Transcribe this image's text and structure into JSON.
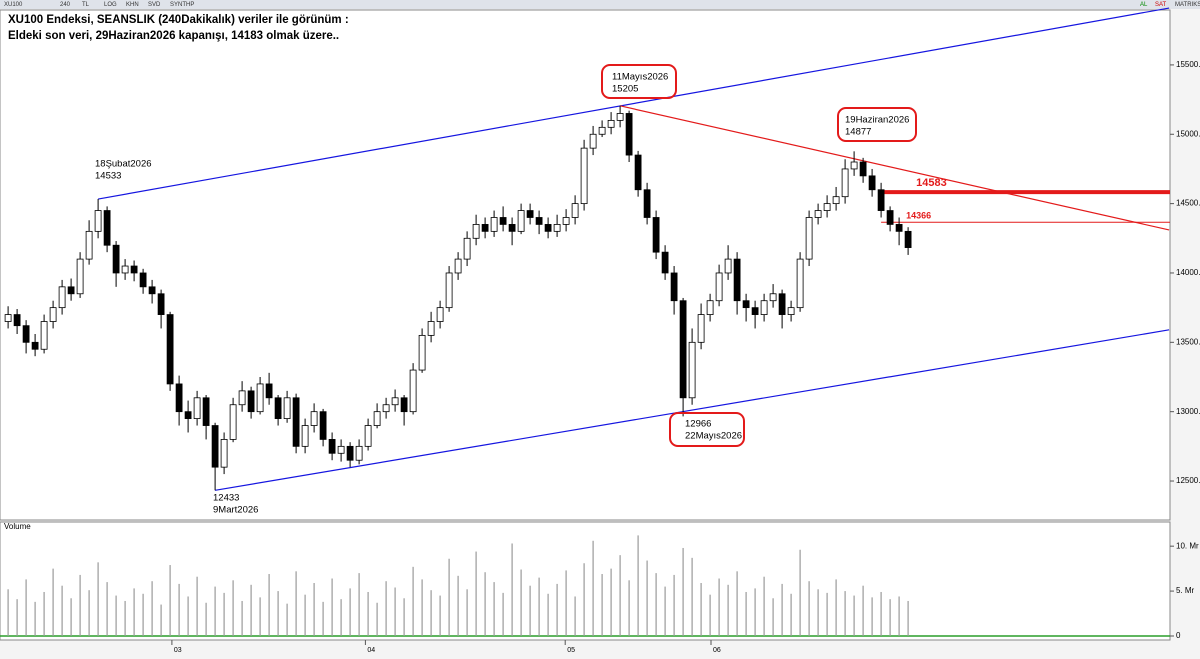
{
  "chart_data": {
    "type": "candlestick",
    "title_lines": [
      "XU100 Endeksi, SEANSLIK (240Dakikalık) veriler ile görünüm :",
      "Eldeki son veri, 29Haziran2026 kapanışı, 14183 olmak üzere.."
    ],
    "toolbar": [
      "XU100",
      "240",
      "TL",
      "LOG",
      "KHN",
      "SVD",
      "SYNTHP"
    ],
    "toolbar_right": [
      "AL",
      "SAT",
      "MATRIKS"
    ],
    "volume_title": "Volume",
    "open": [
      13650,
      13700,
      13620,
      13500,
      13450,
      13650,
      13750,
      13900,
      13850,
      14100,
      14300,
      14450,
      14200,
      14000,
      14050,
      14000,
      13900,
      13850,
      13700,
      13200,
      13000,
      12950,
      13100,
      12900,
      12600,
      12800,
      13050,
      13150,
      13000,
      13200,
      13100,
      12950,
      13100,
      12750,
      12900,
      13000,
      12800,
      12700,
      12750,
      12650,
      12750,
      12900,
      13000,
      13050,
      13100,
      13000,
      13300,
      13550,
      13650,
      13750,
      14000,
      14100,
      14250,
      14350,
      14300,
      14400,
      14350,
      14300,
      14450,
      14400,
      14350,
      14300,
      14350,
      14400,
      14500,
      14900,
      15000,
      15050,
      15100,
      15150,
      14850,
      14600,
      14400,
      14150,
      14000,
      13800,
      13100,
      13500,
      13700,
      13800,
      14000,
      14100,
      13800,
      13750,
      13700,
      13800,
      13850,
      13700,
      13750,
      14100,
      14400,
      14450,
      14500,
      14550,
      14750,
      14800,
      14700,
      14600,
      14450,
      14350,
      14300
    ],
    "high": [
      13760,
      13740,
      13660,
      13560,
      13700,
      13800,
      13950,
      13960,
      14150,
      14380,
      14533,
      14480,
      14230,
      14100,
      14090,
      14030,
      13950,
      13880,
      13720,
      13260,
      13080,
      13150,
      13120,
      12920,
      12850,
      13100,
      13220,
      13180,
      13250,
      13280,
      13120,
      13150,
      13130,
      12950,
      13060,
      13020,
      12850,
      12800,
      12780,
      12800,
      12950,
      13060,
      13100,
      13160,
      13120,
      13350,
      13600,
      13720,
      13800,
      14050,
      14150,
      14300,
      14420,
      14400,
      14450,
      14480,
      14400,
      14500,
      14500,
      14450,
      14400,
      14420,
      14460,
      14560,
      14960,
      15060,
      15100,
      15160,
      15205,
      15170,
      14880,
      14650,
      14450,
      14200,
      14050,
      13820,
      13600,
      13780,
      13850,
      14060,
      14200,
      14150,
      13850,
      13800,
      13850,
      13920,
      13880,
      13800,
      14150,
      14450,
      14500,
      14560,
      14620,
      14820,
      14877,
      14830,
      14750,
      14650,
      14480,
      14400,
      14330
    ],
    "low": [
      13600,
      13560,
      13420,
      13400,
      13420,
      13600,
      13700,
      13800,
      13820,
      14060,
      14250,
      14150,
      13900,
      13950,
      13940,
      13850,
      13780,
      13600,
      13150,
      12900,
      12850,
      12900,
      12800,
      12433,
      12550,
      12780,
      13000,
      12950,
      12980,
      13050,
      12900,
      12920,
      12700,
      12700,
      12850,
      12750,
      12650,
      12640,
      12600,
      12620,
      12720,
      12880,
      12950,
      13000,
      12900,
      12980,
      13280,
      13500,
      13600,
      13720,
      13950,
      14050,
      14200,
      14250,
      14260,
      14300,
      14200,
      14280,
      14350,
      14280,
      14250,
      14260,
      14300,
      14350,
      14450,
      14850,
      14980,
      15000,
      15050,
      14800,
      14550,
      14350,
      14100,
      13950,
      13700,
      12966,
      13050,
      13450,
      13650,
      13760,
      13950,
      13700,
      13650,
      13600,
      13650,
      13750,
      13600,
      13650,
      13720,
      14050,
      14350,
      14400,
      14450,
      14500,
      14700,
      14650,
      14550,
      14400,
      14300,
      14200,
      14130
    ],
    "close": [
      13700,
      13620,
      13500,
      13450,
      13650,
      13750,
      13900,
      13850,
      14100,
      14300,
      14450,
      14200,
      14000,
      14050,
      14000,
      13900,
      13850,
      13700,
      13200,
      13000,
      12950,
      13100,
      12900,
      12600,
      12800,
      13050,
      13150,
      13000,
      13200,
      13100,
      12950,
      13100,
      12750,
      12900,
      13000,
      12800,
      12700,
      12750,
      12650,
      12750,
      12900,
      13000,
      13050,
      13100,
      13000,
      13300,
      13550,
      13650,
      13750,
      14000,
      14100,
      14250,
      14350,
      14300,
      14400,
      14350,
      14300,
      14450,
      14400,
      14350,
      14300,
      14350,
      14400,
      14500,
      14900,
      15000,
      15050,
      15100,
      15150,
      14850,
      14600,
      14400,
      14150,
      14000,
      13800,
      13100,
      13500,
      13700,
      13800,
      14000,
      14100,
      13800,
      13750,
      13700,
      13800,
      13850,
      13700,
      13750,
      14100,
      14400,
      14450,
      14500,
      14550,
      14750,
      14800,
      14700,
      14600,
      14450,
      14350,
      14300,
      14183
    ],
    "volume": [
      5.2,
      4.1,
      6.3,
      3.8,
      4.9,
      7.5,
      5.6,
      4.2,
      6.8,
      5.1,
      8.2,
      6.0,
      4.5,
      3.9,
      5.3,
      4.7,
      6.1,
      3.5,
      7.9,
      5.8,
      4.4,
      6.6,
      3.7,
      5.5,
      4.8,
      6.2,
      3.9,
      5.7,
      4.3,
      6.9,
      5.0,
      3.6,
      7.2,
      4.6,
      5.9,
      3.8,
      6.4,
      4.1,
      5.3,
      7.0,
      4.9,
      3.7,
      6.1,
      5.4,
      4.2,
      7.7,
      6.3,
      5.1,
      4.5,
      8.6,
      6.7,
      5.2,
      9.4,
      7.1,
      6.0,
      4.8,
      10.3,
      7.4,
      5.6,
      6.5,
      4.7,
      5.8,
      7.3,
      4.4,
      8.1,
      10.6,
      6.9,
      7.5,
      9.0,
      6.2,
      11.2,
      8.4,
      7.0,
      5.5,
      6.8,
      9.8,
      8.7,
      5.9,
      4.6,
      6.4,
      5.7,
      7.2,
      4.9,
      5.3,
      6.6,
      4.2,
      5.8,
      4.7,
      9.6,
      6.1,
      5.2,
      4.8,
      6.3,
      5.0,
      4.5,
      5.6,
      4.3,
      4.9,
      4.1,
      4.4,
      3.9
    ],
    "xlim": [
      -0.9,
      129.1
    ],
    "xticks": [
      {
        "value": 18.2,
        "label": "03"
      },
      {
        "value": 39.7,
        "label": "04"
      },
      {
        "value": 61.9,
        "label": "05"
      },
      {
        "value": 78.1,
        "label": "06"
      }
    ],
    "ylim": [
      12219,
      15968
    ],
    "yticks": [
      {
        "value": 12500,
        "label": "12500."
      },
      {
        "value": 13000,
        "label": "13000."
      },
      {
        "value": 13500,
        "label": "13500."
      },
      {
        "value": 14000,
        "label": "14000."
      },
      {
        "value": 14500,
        "label": "14500."
      },
      {
        "value": 15000,
        "label": "15000."
      },
      {
        "value": 15500,
        "label": "15500."
      }
    ],
    "vlim": [
      0,
      11.8
    ],
    "vticks": [
      0,
      {
        "value": 5,
        "label": "5. Mr"
      },
      {
        "value": 10,
        "label": "10. Mr"
      }
    ],
    "trendlines": [
      {
        "color": "#1515e0",
        "x": [
          10,
          129
        ],
        "y": [
          14533,
          15910
        ]
      },
      {
        "color": "#1515e0",
        "x": [
          23,
          129
        ],
        "y": [
          12433,
          13590
        ]
      },
      {
        "color": "#e31a1a",
        "x": [
          68,
          129
        ],
        "y": [
          15205,
          14310
        ]
      }
    ],
    "hlines": [
      {
        "value": 14583,
        "x": 97,
        "width": 4
      },
      {
        "value": 14366,
        "x": 97,
        "width": 1
      }
    ],
    "annotations": [
      {
        "lines": [
          "18Şubat2026",
          "14533"
        ],
        "boxed": false
      },
      {
        "lines": [
          "12433",
          "9Mart2026"
        ],
        "boxed": false
      },
      {
        "lines": [
          "11Mayıs2026",
          "15205"
        ],
        "boxed": true
      },
      {
        "lines": [
          "12966",
          "22Mayıs2026"
        ],
        "boxed": true
      },
      {
        "lines": [
          "19Haziran2026",
          "14877"
        ],
        "boxed": true
      }
    ]
  }
}
